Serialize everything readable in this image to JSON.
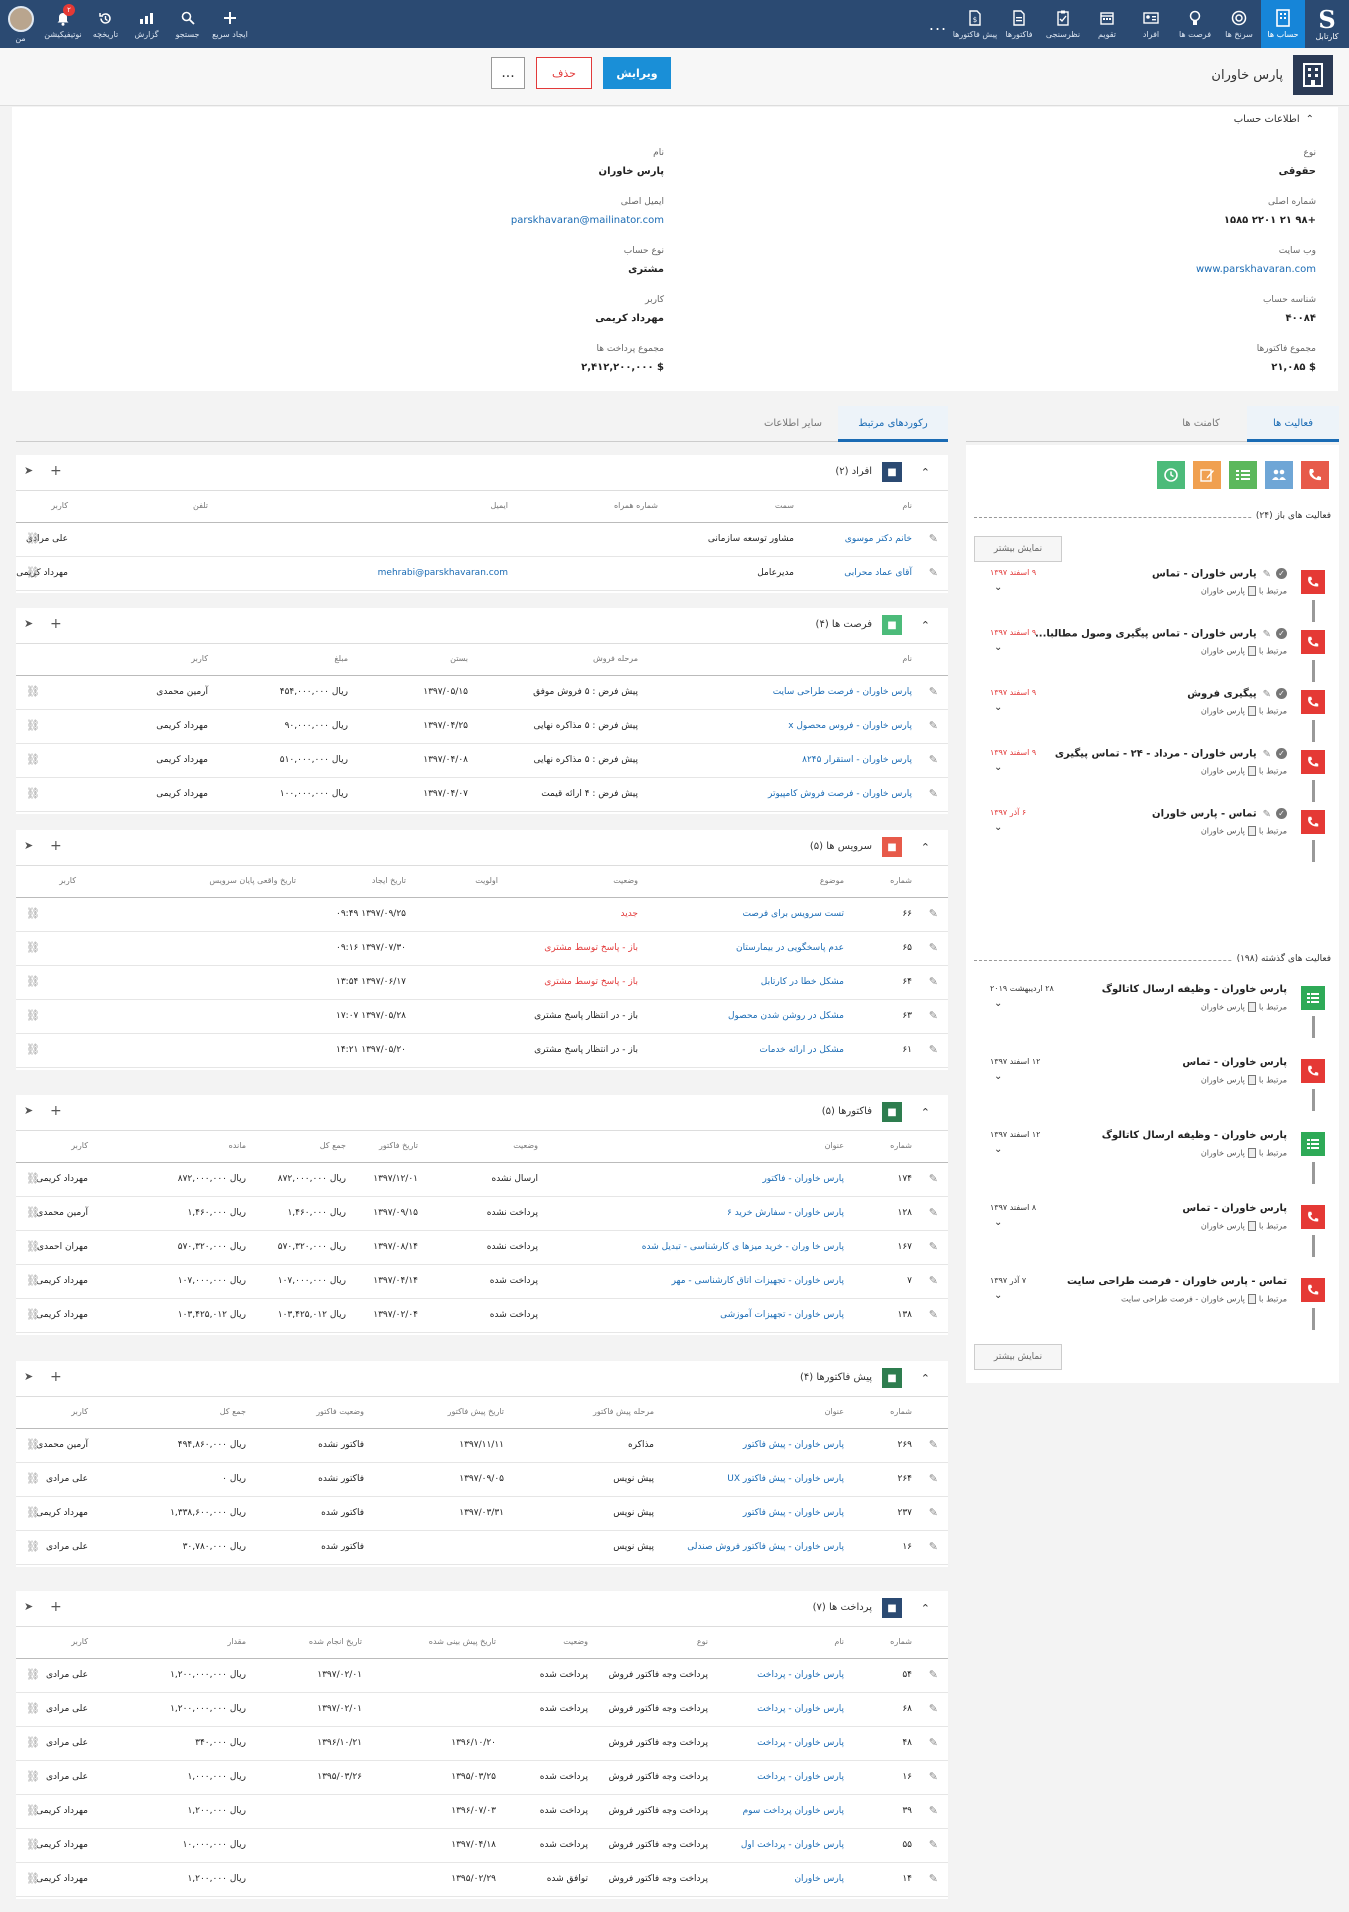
{
  "topnav": {
    "logo_label": "کارتابل",
    "items": [
      "حساب ها",
      "سرنخ ها",
      "فرصت ها",
      "افراد",
      "تقویم",
      "نظرسنجی",
      "فاکتورها",
      "پیش فاکتورها"
    ],
    "more": "...",
    "left_items": [
      "من",
      "نوتیفیکیشن",
      "تاریخچه",
      "گزارش",
      "جستجو",
      "ایجاد سریع"
    ],
    "notification_count": "۲"
  },
  "header": {
    "title": "پارس خاوران",
    "edit": "ویرایش",
    "delete": "حذف",
    "more": "..."
  },
  "info": {
    "section_title": "اطلاعات حساب",
    "right": [
      {
        "label": "نوع",
        "value": "حقوقی"
      },
      {
        "label": "شماره اصلی",
        "value": "+۹۸ ۲۱ ۲۲۰۱ ۱۵۸۵"
      },
      {
        "label": "وب سایت",
        "value": "www.parskhavaran.com"
      },
      {
        "label": "شناسه حساب",
        "value": "۴۰۰۸۴"
      },
      {
        "label": "مجموع فاکتورها",
        "value": "$ ۲۱,۰۸۵"
      }
    ],
    "left": [
      {
        "label": "نام",
        "value": "پارس خاوران"
      },
      {
        "label": "ایمیل اصلی",
        "value": "parskhavaran@mailinator.com"
      },
      {
        "label": "نوع حساب",
        "value": "مشتری"
      },
      {
        "label": "کاربر",
        "value": "مهرداد کریمی"
      },
      {
        "label": "مجموع پرداخت ها",
        "value": "$ ۲,۴۱۲,۲۰۰,۰۰۰"
      }
    ]
  },
  "tabs_right": {
    "activities": "فعالیت ها",
    "comments": "کامنت ها"
  },
  "tabs_left": {
    "related": "رکوردهای مرتبط",
    "other": "سایر اطلاعات"
  },
  "activities": {
    "open_title": "فعالیت های باز  (۲۴)",
    "past_title": "فعالیت های گذشته  (۱۹۸)",
    "show_more": "نمایش بیشتر",
    "related_prefix": "مرتبط با",
    "open": [
      {
        "title": "پارس خاوران - تماس",
        "related": "پارس خاوران",
        "date": "۹ اسفند ۱۳۹۷",
        "color": "#e53935"
      },
      {
        "title": "پارس خاوران - تماس پیگیری وصول مطالبا...",
        "related": "پارس خاوران",
        "date": "۹ اسفند ۱۳۹۷",
        "color": "#e53935"
      },
      {
        "title": "پیگیری فروش",
        "related": "پارس خاوران",
        "date": "۹ اسفند ۱۳۹۷",
        "color": "#e53935"
      },
      {
        "title": "پارس خاوران - مرداد - ۲۴ - تماس پیگیری",
        "related": "پارس خاوران",
        "date": "۹ اسفند ۱۳۹۷",
        "color": "#e53935"
      },
      {
        "title": "تماس - پارس خاوران",
        "related": "پارس خاوران",
        "date": "۶ آذر ۱۳۹۷",
        "color": "#e53935"
      }
    ],
    "past": [
      {
        "title": "پارس خاوران - وظیفه ارسال کاتالوگ",
        "related": "پارس خاوران",
        "date": "۲۸ اردیبهشت ۲۰۱۹",
        "color": "#2eaa57",
        "kind": "task"
      },
      {
        "title": "پارس خاوران - تماس",
        "related": "پارس خاوران",
        "date": "۱۲ اسفند ۱۳۹۷",
        "color": "#e53935",
        "kind": "call"
      },
      {
        "title": "پارس خاوران - وظیفه ارسال کاتالوگ",
        "related": "پارس خاوران",
        "date": "۱۲ اسفند ۱۳۹۷",
        "color": "#2eaa57",
        "kind": "task"
      },
      {
        "title": "پارس خاوران - تماس",
        "related": "پارس خاوران",
        "date": "۸ اسفند ۱۳۹۷",
        "color": "#e53935",
        "kind": "call"
      },
      {
        "title": "تماس - پارس خاوران - فرصت طراحی سایت",
        "related": "پارس خاوران - فرصت طراحی سایت",
        "date": "۷ آذر ۱۳۹۷",
        "color": "#e53935",
        "kind": "call"
      }
    ]
  },
  "people": {
    "title": "افراد (۲)",
    "cols": [
      "نام",
      "سمت",
      "شماره همراه",
      "ایمیل",
      "تلفن",
      "کاربر"
    ],
    "rows": [
      [
        "خانم دکتر موسوی",
        "مشاور توسعه سازمانی",
        "",
        "",
        "",
        "علی مرادی"
      ],
      [
        "آقای عماد محرابی",
        "مدیرعامل",
        "",
        "mehrabi@parskhavaran.com",
        "",
        "مهرداد کریمی"
      ]
    ]
  },
  "opps": {
    "title": "فرصت ها (۴)",
    "cols": [
      "نام",
      "مرحله فروش",
      "بستن",
      "مبلغ",
      "کاربر"
    ],
    "rows": [
      [
        "پارس خاوران - فرصت طراحی سایت",
        "پیش فرض : ۵ فروش موفق",
        "۱۳۹۷/۰۵/۱۵",
        "ریال ۴۵۴,۰۰۰,۰۰۰",
        "آرمین محمدی"
      ],
      [
        "پارس خاوران - فروس محصول x",
        "پیش فرض : ۵ مذاکره نهایی",
        "۱۳۹۷/۰۴/۲۵",
        "ریال ۹۰,۰۰۰,۰۰۰",
        "مهرداد کریمی"
      ],
      [
        "پارس خاوران - استقرار ۸۲۴۵",
        "پیش فرض : ۵ مذاکره نهایی",
        "۱۳۹۷/۰۴/۰۸",
        "ریال ۵۱۰,۰۰۰,۰۰۰",
        "مهرداد کریمی"
      ],
      [
        "پارس خاوران - فرصت فروش کامپیوتر",
        "پیش فرض : ۴ ارائه قیمت",
        "۱۳۹۷/۰۴/۰۷",
        "ریال ۱۰۰,۰۰۰,۰۰۰",
        "مهرداد کریمی"
      ]
    ]
  },
  "services": {
    "title": "سرویس ها (۵)",
    "cols": [
      "شماره",
      "موضوع",
      "وضعیت",
      "اولویت",
      "تاریخ ایجاد",
      "تاریخ واقعی پایان سرویس",
      "کاربر"
    ],
    "rows": [
      [
        "۶۶",
        "تست سرویس برای فرصت",
        "جدید",
        "",
        "۱۳۹۷/۰۹/۲۵ ۰۹:۴۹",
        "",
        ""
      ],
      [
        "۶۵",
        "عدم پاسخگویی در بیمارستان",
        "باز - پاسخ توسط مشتری",
        "",
        "۱۳۹۷/۰۷/۳۰ ۰۹:۱۶",
        "",
        ""
      ],
      [
        "۶۴",
        "مشکل خطا در کارتابل",
        "باز - پاسخ توسط مشتری",
        "",
        "۱۳۹۷/۰۶/۱۷ ۱۳:۵۴",
        "",
        ""
      ],
      [
        "۶۳",
        "مشکل در روشن شدن محصول",
        "باز - در انتظار پاسخ مشتری",
        "",
        "۱۳۹۷/۰۵/۲۸ ۱۷:۰۷",
        "",
        ""
      ],
      [
        "۶۱",
        "مشکل در ارائه خدمات",
        "باز - در انتظار پاسخ مشتری",
        "",
        "۱۳۹۷/۰۵/۲۰ ۱۴:۲۱",
        "",
        ""
      ]
    ],
    "status_colors": [
      "red",
      "red",
      "red",
      "dark",
      "dark"
    ]
  },
  "invoices": {
    "title": "فاکتورها (۵)",
    "cols": [
      "شماره",
      "عنوان",
      "وضعیت",
      "تاریخ فاکتور",
      "جمع کل",
      "مانده",
      "کاربر"
    ],
    "rows": [
      [
        "۱۷۴",
        "پارس خاوران - فاکتور",
        "ارسال نشده",
        "۱۳۹۷/۱۲/۰۱",
        "ریال ۸۷۲,۰۰۰,۰۰۰",
        "ریال ۸۷۲,۰۰۰,۰۰۰",
        "مهرداد کریمی"
      ],
      [
        "۱۲۸",
        "پارس خاوران - سفارش خرید ۶",
        "پرداخت نشده",
        "۱۳۹۷/۰۹/۱۵",
        "ریال ۱,۴۶۰,۰۰۰",
        "ریال ۱,۴۶۰,۰۰۰",
        "آرمین محمدی"
      ],
      [
        "۱۶۷",
        "پارس خا وران - خرید میزها ی کارشناسی - تبدیل شده",
        "پرداخت نشده",
        "۱۳۹۷/۰۸/۱۴",
        "ریال ۵۷۰,۳۲۰,۰۰۰",
        "ریال ۵۷۰,۳۲۰,۰۰۰",
        "مهران احمدی"
      ],
      [
        "۷",
        "پارس خاوران - تجهیزات اتاق کارشناسی - مهر",
        "پرداخت شده",
        "۱۳۹۷/۰۴/۱۴",
        "ریال ۱۰۷,۰۰۰,۰۰۰",
        "ریال ۱۰۷,۰۰۰,۰۰۰",
        "مهرداد کریمی"
      ],
      [
        "۱۳۸",
        "پارس خاوران - تجهیزات آموزشی",
        "پرداخت شده",
        "۱۳۹۷/۰۲/۰۴",
        "ریال ۱۰۳,۴۲۵,۰۱۲",
        "ریال ۱۰۳,۴۲۵,۰۱۲",
        "مهرداد کریمی"
      ]
    ]
  },
  "quotes": {
    "title": "پیش فاکتورها (۴)",
    "cols": [
      "شماره",
      "عنوان",
      "مرحله پیش فاکتور",
      "تاریخ پیش فاکتور",
      "وضعیت فاکتور",
      "جمع کل",
      "کاربر"
    ],
    "rows": [
      [
        "۲۶۹",
        "پارس خاوران - پیش فاکتور",
        "مذاکره",
        "۱۳۹۷/۱۱/۱۱",
        "فاکتور نشده",
        "ریال ۴۹۴,۸۶۰,۰۰۰",
        "آرمین محمدی"
      ],
      [
        "۲۶۴",
        "پارس خاوران - پیش فاکتور UX",
        "پیش نویس",
        "۱۳۹۷/۰۹/۰۵",
        "فاکتور نشده",
        "ریال ۰",
        "علی مرادی"
      ],
      [
        "۲۳۷",
        "پارس خاوران - پیش فاکتور",
        "پیش نویس",
        "۱۳۹۷/۰۳/۳۱",
        "فاکتور شده",
        "ریال ۱,۳۳۸,۶۰۰,۰۰۰",
        "مهرداد کریمی"
      ],
      [
        "۱۶",
        "پارس خاوران - پیش فاکتور فروش صندلی",
        "پیش نویس",
        "",
        "فاکتور شده",
        "ریال ۳۰,۷۸۰,۰۰۰",
        "علی مرادی"
      ]
    ]
  },
  "payments": {
    "title": "پرداخت ها (۷)",
    "cols": [
      "شماره",
      "نام",
      "نوع",
      "وضعیت",
      "تاریخ پیش بینی شده",
      "تاریخ انجام شده",
      "مقدار",
      "کاربر"
    ],
    "rows": [
      [
        "۵۴",
        "پارس خاوران - پرداخت",
        "پرداخت وجه فاکتور فروش",
        "پرداخت شده",
        "",
        "۱۳۹۷/۰۲/۰۱",
        "ریال ۱,۲۰۰,۰۰۰,۰۰۰",
        "علی مرادی"
      ],
      [
        "۶۸",
        "پارس خاوران - پرداخت",
        "پرداخت وجه فاکتور فروش",
        "پرداخت شده",
        "",
        "۱۳۹۷/۰۲/۰۱",
        "ریال ۱,۲۰۰,۰۰۰,۰۰۰",
        "علی مرادی"
      ],
      [
        "۴۸",
        "پارس خاوران - پرداخت",
        "پرداخت وجه فاکتور فروش",
        "",
        "۱۳۹۶/۱۰/۲۰",
        "۱۳۹۶/۱۰/۲۱",
        "ریال ۳۴۰,۰۰۰",
        "علی مرادی"
      ],
      [
        "۱۶",
        "پارس خاوران - پرداخت",
        "پرداخت وجه فاکتور فروش",
        "پرداخت شده",
        "۱۳۹۵/۰۳/۲۵",
        "۱۳۹۵/۰۳/۲۶",
        "ریال ۱,۰۰۰,۰۰۰",
        "علی مرادی"
      ],
      [
        "۳۹",
        "پارس خاوران پرداخت سوم",
        "پرداخت وجه فاکتور فروش",
        "پرداخت شده",
        "۱۳۹۶/۰۷/۰۳",
        "",
        "ریال ۱,۲۰۰,۰۰۰",
        "مهرداد کریمی"
      ],
      [
        "۵۵",
        "پارس خاوران - پرداخت اول",
        "پرداخت وجه فاکتور فروش",
        "پرداخت شده",
        "۱۳۹۷/۰۴/۱۸",
        "",
        "ریال ۱۰,۰۰۰,۰۰۰",
        "مهرداد کریمی"
      ],
      [
        "۱۴",
        "پارس خاوران",
        "پرداخت وجه فاکتور فروش",
        "توافق شده",
        "۱۳۹۵/۰۲/۲۹",
        "",
        "ریال ۱,۲۰۰,۰۰۰",
        "مهرداد کریمی"
      ]
    ]
  }
}
